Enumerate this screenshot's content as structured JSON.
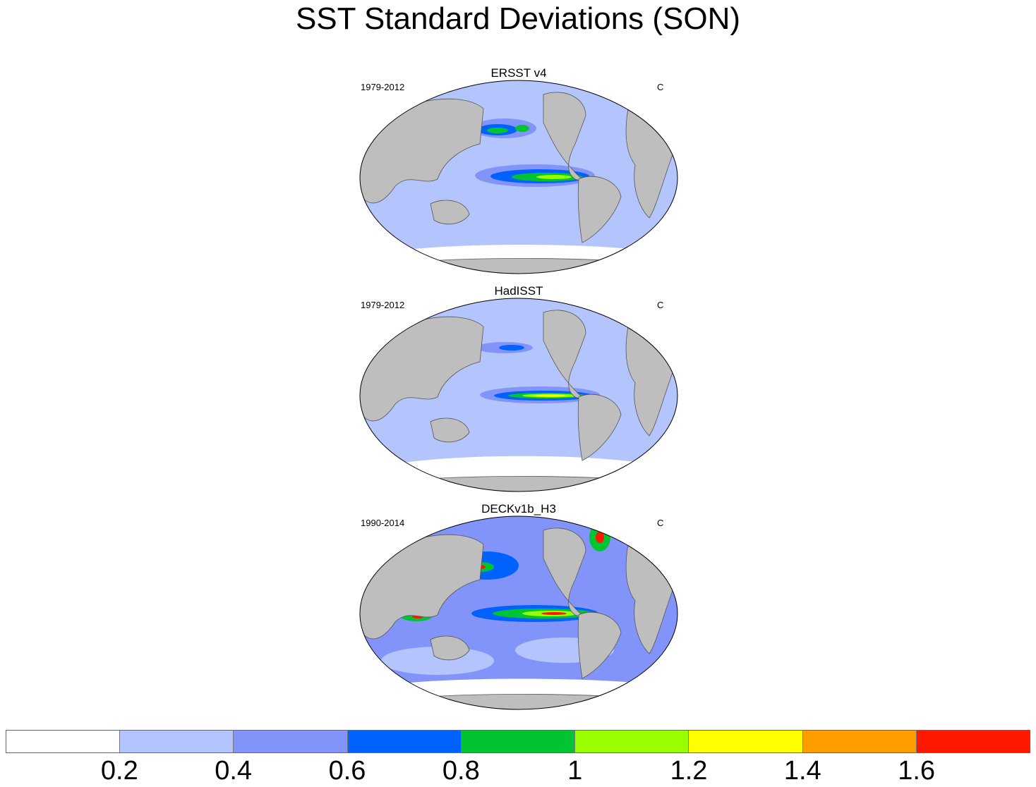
{
  "title": "SST Standard Deviations (SON)",
  "panels": [
    {
      "title": "ERSST v4",
      "left_label": "1979-2012",
      "right_label": "C"
    },
    {
      "title": "HadISST",
      "left_label": "1979-2012",
      "right_label": "C"
    },
    {
      "title": "DECKv1b_H3",
      "left_label": "1990-2014",
      "right_label": "C"
    }
  ],
  "colorbar": {
    "labels": [
      "0.2",
      "0.4",
      "0.6",
      "0.8",
      "1",
      "1.2",
      "1.4",
      "1.6"
    ],
    "colors": [
      "#ffffff",
      "#b4c4fc",
      "#8294fa",
      "#0062fd",
      "#00c432",
      "#99ff00",
      "#ffff00",
      "#ff9c00",
      "#ff1800"
    ]
  },
  "land_color": "#bebebe"
}
